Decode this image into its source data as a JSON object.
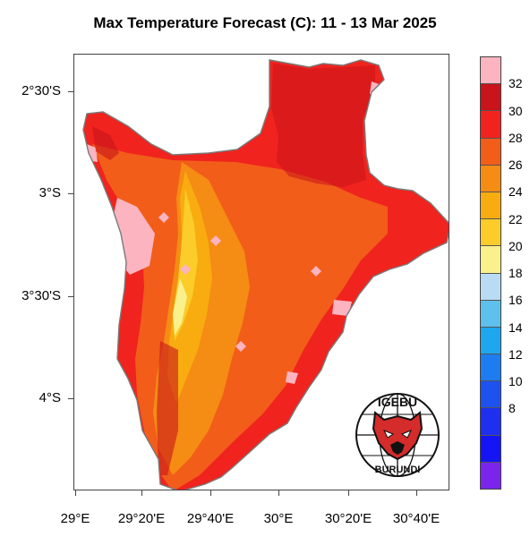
{
  "title": "Max Temperature Forecast (C): 11 - 13 Mar 2025",
  "lat_labels": [
    "2°30'S",
    "3°S",
    "3°30'S",
    "4°S"
  ],
  "lon_labels": [
    "29°E",
    "29°20'E",
    "29°40'E",
    "30°E",
    "30°20'E",
    "30°40'E"
  ],
  "legend": {
    "labels": [
      "32",
      "30",
      "28",
      "26",
      "24",
      "22",
      "20",
      "18",
      "16",
      "14",
      "12",
      "10",
      "8"
    ],
    "colors": [
      "#fbb4c0",
      "#c8141a",
      "#f0231e",
      "#f25d1a",
      "#f58c13",
      "#f9ac0f",
      "#fbcc2a",
      "#faf08c",
      "#b9dcf4",
      "#5ec0ed",
      "#1ea7ee",
      "#1d7df0",
      "#1e52ee",
      "#1e2fef",
      "#1414f5",
      "#7b24ec"
    ]
  },
  "logo": {
    "text_top": "IGEBU",
    "text_bottom": "BURUNDI"
  }
}
